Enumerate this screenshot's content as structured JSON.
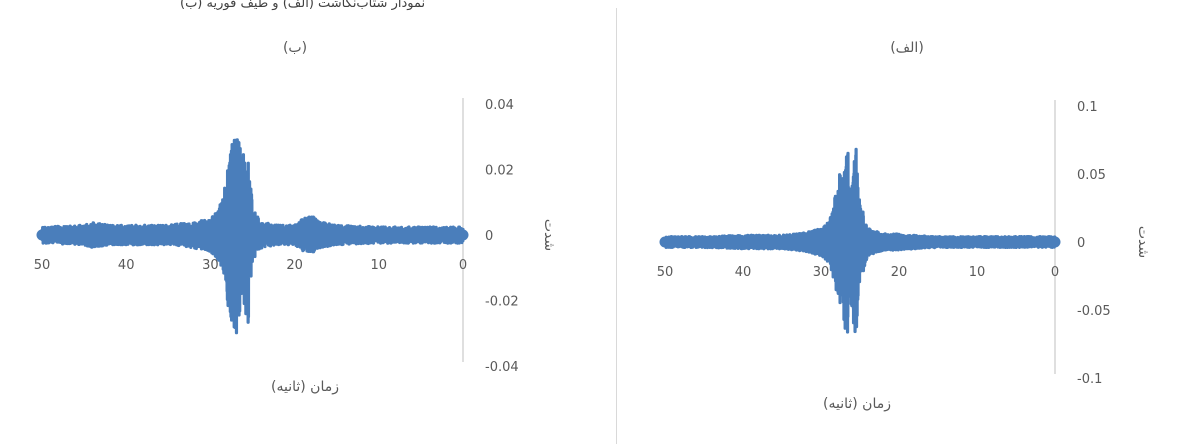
{
  "caption": "نمودار شتاب‌نگاشت (الف) و طیف فوریه (ب)",
  "chart_data": [
    {
      "id": "right",
      "type": "line",
      "title": "(الف)",
      "xlabel": "زمان (ثانیه)",
      "ylabel": "شدت",
      "x_ticks": [
        0,
        10,
        20,
        30,
        40,
        50
      ],
      "y_ticks": [
        0.1,
        0.05,
        0,
        -0.05,
        -0.1
      ],
      "y_tick_labels": [
        "0.1",
        "0.05",
        "0",
        "-0.05",
        "-0.1"
      ],
      "x_reversed": true,
      "xlim": [
        0,
        50
      ],
      "ylim": [
        -0.1,
        0.1
      ],
      "color": "#4a7ebb",
      "series": [
        {
          "x": [
            0,
            5,
            10,
            15,
            18,
            20,
            22,
            24,
            25,
            25.5,
            26,
            26.3,
            26.6,
            27,
            27.3,
            27.6,
            28,
            28.5,
            29,
            30,
            32,
            35,
            40,
            45,
            50
          ],
          "amp": [
            0.004,
            0.004,
            0.004,
            0.004,
            0.005,
            0.006,
            0.006,
            0.01,
            0.03,
            0.07,
            0.055,
            0.045,
            0.075,
            0.06,
            0.045,
            0.05,
            0.04,
            0.025,
            0.015,
            0.01,
            0.007,
            0.005,
            0.005,
            0.004,
            0.004
          ]
        }
      ]
    },
    {
      "id": "left",
      "type": "line",
      "title": "(ب)",
      "xlabel": "زمان (ثانیه)",
      "ylabel": "شدت",
      "x_ticks": [
        0,
        10,
        20,
        30,
        40,
        50
      ],
      "y_ticks": [
        0.04,
        0.02,
        0,
        -0.02,
        -0.04
      ],
      "y_tick_labels": [
        "0.04",
        "0.02",
        "0",
        "-0.02",
        "-0.04"
      ],
      "x_reversed": true,
      "xlim": [
        0,
        50
      ],
      "ylim": [
        -0.04,
        0.04
      ],
      "color": "#4a7ebb",
      "series": [
        {
          "x": [
            0,
            5,
            10,
            15,
            17,
            18,
            19,
            20,
            22,
            24,
            25,
            25.5,
            26,
            26.5,
            27,
            27.5,
            28,
            28.5,
            29,
            30,
            32,
            35,
            40,
            42,
            44,
            45,
            50
          ],
          "amp": [
            0.0025,
            0.0025,
            0.0025,
            0.003,
            0.004,
            0.006,
            0.005,
            0.003,
            0.003,
            0.004,
            0.008,
            0.027,
            0.024,
            0.028,
            0.031,
            0.03,
            0.02,
            0.012,
            0.008,
            0.005,
            0.004,
            0.003,
            0.003,
            0.003,
            0.004,
            0.003,
            0.0025
          ]
        }
      ]
    }
  ]
}
